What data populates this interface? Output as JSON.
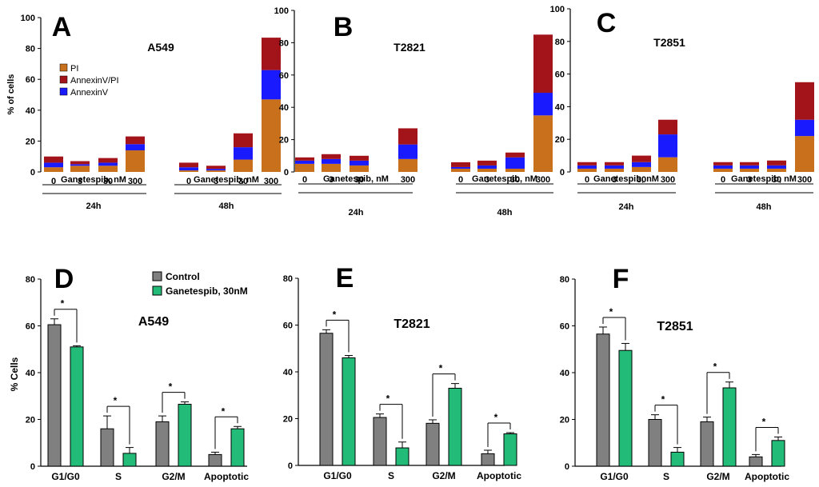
{
  "colors": {
    "pi": "#c8701c",
    "annexin_pi": "#a3141a",
    "annexin": "#1a1aff",
    "control": "#808080",
    "treated": "#22bb77",
    "axis": "#000000"
  },
  "chart_data": [
    {
      "panel": "A",
      "type": "bar",
      "stacked": true,
      "title": "A549",
      "ylabel": "% of cells",
      "xlabel": "Ganetespib, nM",
      "ylim": [
        0,
        100
      ],
      "yticks": [
        0,
        20,
        40,
        60,
        80,
        100
      ],
      "legend": "top-left",
      "groups": [
        {
          "label": "24h",
          "xlabel": "Ganetespib, nM",
          "categories": [
            "0",
            "3",
            "30",
            "300"
          ]
        },
        {
          "label": "48h",
          "xlabel": "Ganetespib, nM",
          "categories": [
            "0",
            "3",
            "30",
            "300"
          ]
        }
      ],
      "series": [
        {
          "name": "PI",
          "color_key": "pi",
          "values": [
            3,
            4,
            4,
            14,
            1,
            1,
            8,
            47
          ]
        },
        {
          "name": "AnnexinV",
          "color_key": "annexin",
          "values": [
            3,
            1,
            2,
            4,
            2,
            1,
            8,
            19
          ]
        },
        {
          "name": "AnnexinV/PI",
          "color_key": "annexin_pi",
          "values": [
            4,
            2,
            3,
            5,
            3,
            2,
            9,
            21
          ]
        }
      ]
    },
    {
      "panel": "B",
      "type": "bar",
      "stacked": true,
      "title": "T2821",
      "ylabel": "",
      "xlabel": "Ganetespib, nM",
      "ylim": [
        0,
        100
      ],
      "yticks": [
        0,
        20,
        40,
        60,
        80,
        100
      ],
      "groups": [
        {
          "label": "24h",
          "xlabel": "Ganetespib, nM",
          "categories": [
            "0",
            "3",
            "30",
            "300"
          ]
        },
        {
          "label": "48h",
          "xlabel": "Ganetespib, nM",
          "categories": [
            "0",
            "3",
            "30",
            "300"
          ]
        }
      ],
      "series": [
        {
          "name": "PI",
          "values": [
            5,
            5,
            4,
            8,
            2,
            2,
            2,
            35
          ]
        },
        {
          "name": "AnnexinV",
          "values": [
            2,
            3,
            3,
            9,
            1,
            2,
            7,
            14
          ]
        },
        {
          "name": "AnnexinV/PI",
          "values": [
            2,
            3,
            3,
            10,
            3,
            3,
            3,
            36
          ]
        }
      ]
    },
    {
      "panel": "C",
      "type": "bar",
      "stacked": true,
      "title": "T2851",
      "ylabel": "",
      "xlabel": "Ganetespib, nM",
      "ylim": [
        0,
        100
      ],
      "yticks": [
        0,
        20,
        40,
        60,
        80,
        100
      ],
      "groups": [
        {
          "label": "24h",
          "xlabel": "Ganetespib, nM",
          "categories": [
            "0",
            "3",
            "30",
            "300"
          ]
        },
        {
          "label": "48h",
          "xlabel": "Ganetespib, nM",
          "categories": [
            "0",
            "3",
            "30",
            "300"
          ]
        }
      ],
      "series": [
        {
          "name": "PI",
          "values": [
            2,
            2,
            3,
            9,
            2,
            2,
            2,
            22
          ]
        },
        {
          "name": "AnnexinV",
          "values": [
            2,
            2,
            3,
            14,
            2,
            2,
            2,
            10
          ]
        },
        {
          "name": "AnnexinV/PI",
          "values": [
            2,
            2,
            4,
            9,
            2,
            2,
            3,
            23
          ]
        }
      ]
    },
    {
      "panel": "D",
      "type": "bar",
      "title": "A549",
      "ylabel": "% Cells",
      "ylim": [
        0,
        80
      ],
      "yticks": [
        0,
        20,
        40,
        60,
        80
      ],
      "legend": "top-left",
      "categories": [
        "G1/G0",
        "S",
        "G2/M",
        "Apoptotic"
      ],
      "series": [
        {
          "name": "Control",
          "values": [
            60.5,
            16,
            19,
            5
          ],
          "errors": [
            2.5,
            5.5,
            2.5,
            1
          ]
        },
        {
          "name": "Ganetespib, 30nM",
          "values": [
            51,
            5.5,
            26.5,
            16
          ],
          "errors": [
            0.5,
            2.5,
            1,
            1
          ]
        }
      ],
      "annotations": [
        "*",
        "*",
        "*",
        "*"
      ]
    },
    {
      "panel": "E",
      "type": "bar",
      "title": "T2821",
      "ylabel": "",
      "ylim": [
        0,
        80
      ],
      "yticks": [
        0,
        20,
        40,
        60,
        80
      ],
      "categories": [
        "G1/G0",
        "S",
        "G2/M",
        "Apoptotic"
      ],
      "series": [
        {
          "name": "Control",
          "values": [
            56.5,
            20.5,
            18,
            5
          ],
          "errors": [
            1.5,
            1.5,
            1.5,
            1.5
          ]
        },
        {
          "name": "Ganetespib, 30nM",
          "values": [
            46,
            7.5,
            33,
            13.5
          ],
          "errors": [
            1,
            2.5,
            2,
            0.5
          ]
        }
      ],
      "annotations": [
        "*",
        "*",
        "*",
        "*"
      ]
    },
    {
      "panel": "F",
      "type": "bar",
      "title": "T2851",
      "ylabel": "",
      "ylim": [
        0,
        80
      ],
      "yticks": [
        0,
        20,
        40,
        60,
        80
      ],
      "categories": [
        "G1/G0",
        "S",
        "G2/M",
        "Apoptotic"
      ],
      "series": [
        {
          "name": "Control",
          "values": [
            56.5,
            20,
            19,
            4
          ],
          "errors": [
            3,
            2,
            2,
            1
          ]
        },
        {
          "name": "Ganetespib, 30nM",
          "values": [
            49.5,
            6,
            33.5,
            11
          ],
          "errors": [
            3,
            2,
            2.5,
            1.5
          ]
        }
      ],
      "annotations": [
        "*",
        "*",
        "*",
        "*"
      ]
    }
  ]
}
